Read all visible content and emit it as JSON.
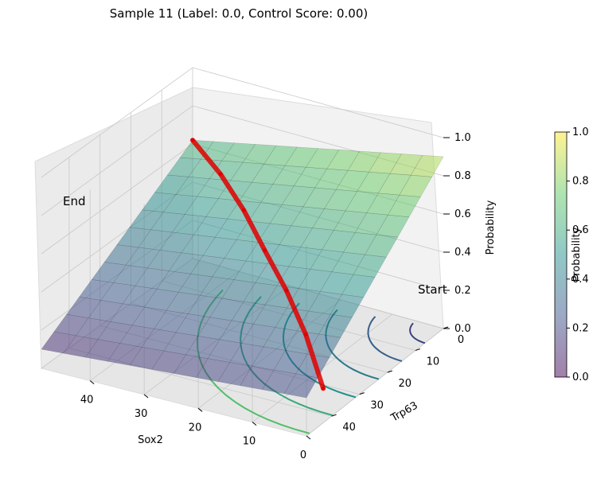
{
  "chart_data": {
    "type": "surface3d",
    "title": "Sample 11 (Label: 0.0, Control Score: 0.00)",
    "xlabel": "Sox2",
    "ylabel": "Trp63",
    "zlabel": "Probability",
    "x_ticks": [
      0,
      10,
      20,
      30,
      40
    ],
    "y_ticks": [
      0,
      10,
      20,
      30,
      40
    ],
    "z_ticks": [
      "0.0",
      "0.2",
      "0.4",
      "0.6",
      "0.8",
      "1.0"
    ],
    "xlim": [
      0,
      49
    ],
    "ylim": [
      0,
      49
    ],
    "zlim": [
      0,
      1
    ],
    "colormap": "viridis",
    "surface_alpha": 0.5,
    "grid": true,
    "surface_corners": [
      {
        "sox2": 49,
        "trp63": 0,
        "probability": 0.62
      },
      {
        "sox2": 0,
        "trp63": 0,
        "probability": 0.9
      },
      {
        "sox2": 0,
        "trp63": 49,
        "probability": 0.2
      },
      {
        "sox2": 49,
        "trp63": 49,
        "probability": 0.1
      }
    ],
    "contour_levels": [
      0.2,
      0.3,
      0.4,
      0.5,
      0.6,
      0.7
    ],
    "path": {
      "color": "#e00000",
      "start_label": "Start",
      "end_label": "End",
      "points": [
        {
          "sox2": 49,
          "trp63": 0,
          "probability": 0.62
        },
        {
          "sox2": 40,
          "trp63": 6,
          "probability": 0.58
        },
        {
          "sox2": 32,
          "trp63": 12,
          "probability": 0.52
        },
        {
          "sox2": 24,
          "trp63": 19,
          "probability": 0.45
        },
        {
          "sox2": 16,
          "trp63": 26,
          "probability": 0.38
        },
        {
          "sox2": 8,
          "trp63": 34,
          "probability": 0.3
        },
        {
          "sox2": 0,
          "trp63": 43,
          "probability": 0.18
        }
      ]
    },
    "colorbar": {
      "label": "Probability",
      "ticks": [
        "0.0",
        "0.2",
        "0.4",
        "0.6",
        "0.8",
        "1.0"
      ],
      "range": [
        0,
        1
      ]
    }
  }
}
